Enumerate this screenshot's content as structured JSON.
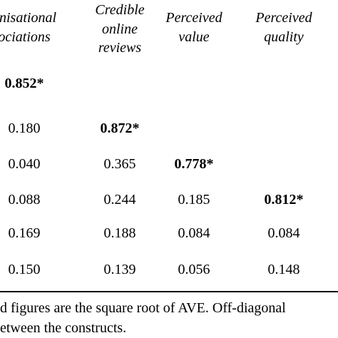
{
  "table": {
    "headers": [
      [
        "anisational",
        "ociations"
      ],
      [
        "Credible",
        "online",
        "reviews"
      ],
      [
        "Perceived",
        "value"
      ],
      [
        "Perceived",
        "quality"
      ]
    ],
    "rows": [
      [
        "0.852*"
      ],
      [
        "0.180",
        "0.872*"
      ],
      [
        "0.040",
        "0.365",
        "0.778*"
      ],
      [
        "0.088",
        "0.244",
        "0.185",
        "0.812*"
      ],
      [
        "0.169",
        "0.188",
        "0.084",
        "0.084"
      ],
      [
        "0.150",
        "0.139",
        "0.056",
        "0.148"
      ]
    ]
  },
  "footnote": [
    "d figures are the square root of AVE. Off-diagonal",
    "etween the constructs."
  ]
}
